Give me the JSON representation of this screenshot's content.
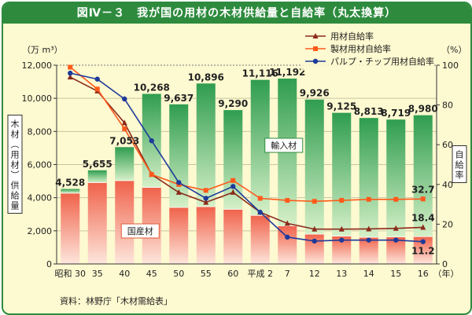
{
  "title": "図Ⅳ－３　我が国の用材の木材供給量と自給率（丸太換算）",
  "source": "資料：林野庁「木材需給表」",
  "chart_data": {
    "type": "bar+line",
    "categories": [
      "昭和 30",
      "35",
      "40",
      "45",
      "50",
      "55",
      "60",
      "平成 2",
      "7",
      "12",
      "13",
      "14",
      "15",
      "16"
    ],
    "x_unit": "（年）",
    "left_axis": {
      "unit": "（万 m³）",
      "title": "木材（用材）供給量",
      "ylim": [
        0,
        12000
      ],
      "ticks": [
        "0",
        "2,000",
        "4,000",
        "6,000",
        "8,000",
        "10,000",
        "12,000"
      ]
    },
    "right_axis": {
      "unit": "（%）",
      "title": "自給率",
      "ylim": [
        0,
        100
      ],
      "ticks": [
        "0",
        "20",
        "40",
        "60",
        "80",
        "100"
      ]
    },
    "totals": [
      4528,
      5655,
      7053,
      10268,
      9637,
      10896,
      9290,
      11116,
      11192,
      9926,
      9125,
      8813,
      8719,
      8980
    ],
    "total_labels": [
      "4,528",
      "5,655",
      "7,053",
      "10,268",
      "9,637",
      "10,896",
      "9,290",
      "11,116",
      "11,192",
      "9,926",
      "9,125",
      "8,813",
      "8,719",
      "8,980"
    ],
    "domestic": [
      4270,
      4910,
      5030,
      4620,
      3410,
      3460,
      3300,
      2930,
      2300,
      1800,
      1680,
      1610,
      1630,
      1650
    ],
    "bar_series_labels": {
      "import": "輸入材",
      "domestic": "国産材"
    },
    "lines": [
      {
        "name": "用材自給率",
        "color": "#8b2a1a",
        "marker": "triangle",
        "values": [
          94,
          87,
          71,
          45,
          36,
          31,
          36,
          26,
          20.4,
          17.5,
          17.5,
          17.6,
          17.9,
          18.4
        ],
        "end_label": "18.4"
      },
      {
        "name": "製材用材自給率",
        "color": "#ff5a1a",
        "marker": "square",
        "values": [
          99,
          88,
          68,
          45,
          40,
          37,
          42,
          33,
          32,
          31.5,
          32,
          32.5,
          32.5,
          32.7
        ],
        "end_label": "32.7"
      },
      {
        "name": "パルプ・チップ用材自給率",
        "color": "#1e3a9a",
        "marker": "circle",
        "values": [
          96,
          93,
          83,
          62,
          41,
          33,
          39,
          26,
          13.5,
          11.5,
          12,
          12,
          12,
          11.2
        ],
        "end_label": "11.2"
      }
    ],
    "grid": true,
    "legend": "top-right"
  }
}
